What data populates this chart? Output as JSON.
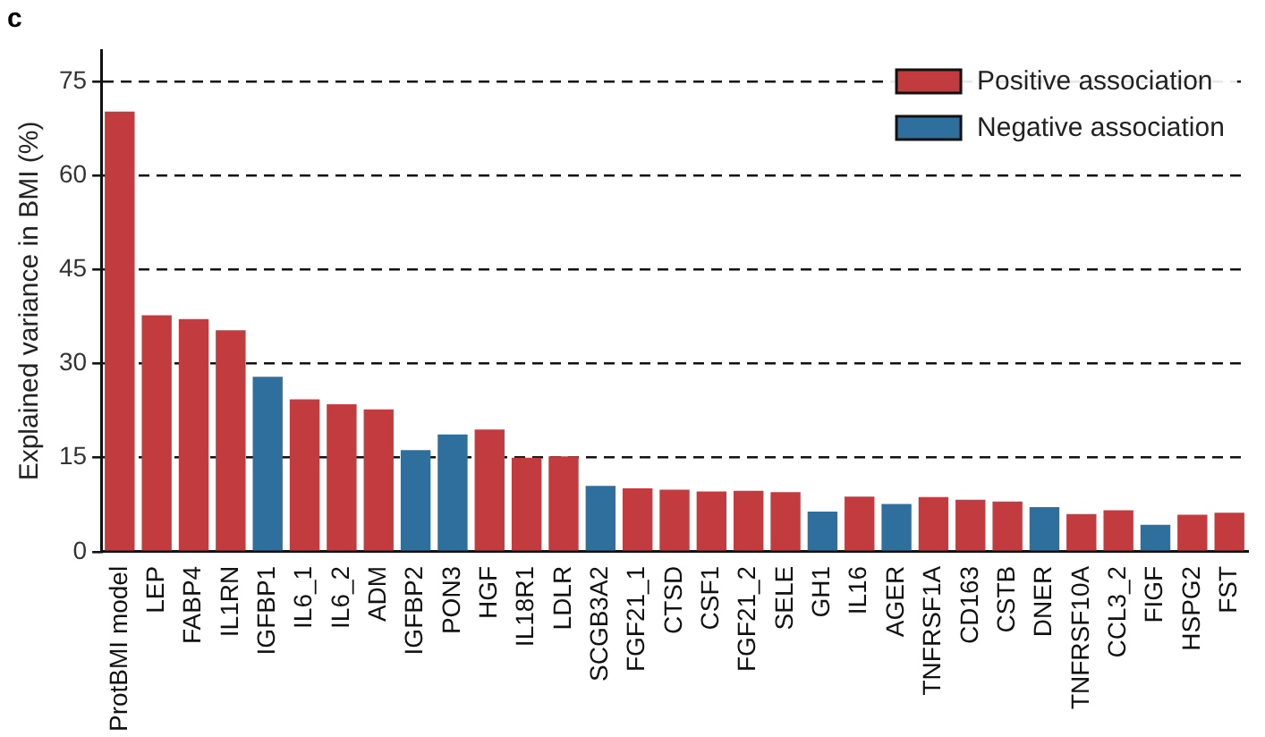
{
  "chart_data": {
    "type": "bar",
    "ylabel": "Explained variance in BMI (%)",
    "annotations": [
      "c"
    ],
    "categories": [
      "ProtBMI model",
      "LEP",
      "FABP4",
      "IL1RN",
      "IGFBP1",
      "IL6_1",
      "IL6_2",
      "ADM",
      "IGFBP2",
      "PON3",
      "HGF",
      "IL18R1",
      "LDLR",
      "SCGB3A2",
      "FGF21_1",
      "CTSD",
      "CSF1",
      "FGF21_2",
      "SELE",
      "GH1",
      "IL16",
      "AGER",
      "TNFRSF1A",
      "CD163",
      "CSTB",
      "DNER",
      "TNFRSF10A",
      "CCL3_2",
      "FIGF",
      "HSPG2",
      "FST"
    ],
    "series": [
      {
        "name": "Positive association",
        "color": "#c23b3e",
        "values": [
          70.2,
          37.7,
          37.1,
          35.3,
          null,
          24.3,
          23.5,
          22.7,
          null,
          null,
          19.5,
          15.0,
          15.2,
          null,
          10.1,
          9.9,
          9.6,
          9.7,
          9.5,
          null,
          8.8,
          null,
          8.7,
          8.3,
          8.0,
          null,
          6.0,
          6.6,
          null,
          5.9,
          6.2
        ]
      },
      {
        "name": "Negative association",
        "color": "#2e6f9e",
        "values": [
          null,
          null,
          null,
          null,
          27.9,
          null,
          null,
          null,
          16.2,
          18.7,
          null,
          null,
          null,
          10.5,
          null,
          null,
          null,
          null,
          null,
          6.4,
          null,
          7.6,
          null,
          null,
          null,
          7.1,
          null,
          null,
          4.3,
          null,
          null
        ]
      }
    ],
    "ylim": [
      0,
      80
    ],
    "yticks": [
      0,
      15,
      30,
      45,
      60,
      75
    ],
    "grid": "y",
    "legend": "top right"
  }
}
